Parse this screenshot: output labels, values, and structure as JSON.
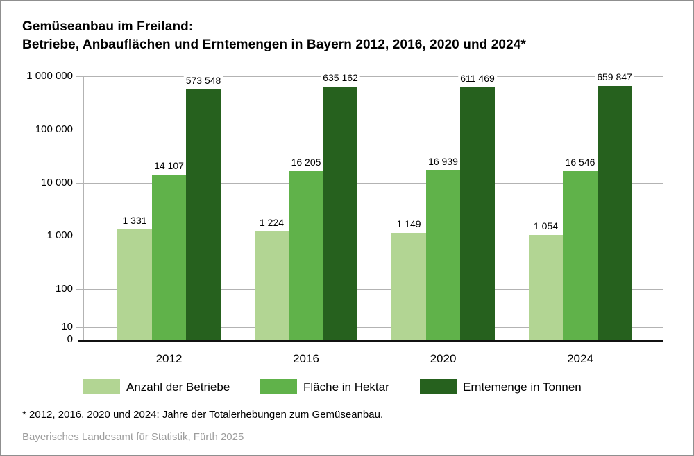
{
  "title": {
    "line1": "Gemüseanbau im Freiland:",
    "line2": "Betriebe, Anbauflächen und Erntemengen in Bayern 2012, 2016, 2020 und 2024*"
  },
  "chart_data": {
    "type": "bar",
    "scale": "logarithmic",
    "categories": [
      "2012",
      "2016",
      "2020",
      "2024"
    ],
    "series": [
      {
        "name": "Anzahl der Betriebe",
        "color": "#b2d593",
        "values": [
          1331,
          1224,
          1149,
          1054
        ],
        "value_labels": [
          "1 331",
          "1 224",
          "1 149",
          "1 054"
        ]
      },
      {
        "name": "Fläche in Hektar",
        "color": "#60b24a",
        "values": [
          14107,
          16205,
          16939,
          16546
        ],
        "value_labels": [
          "14 107",
          "16 205",
          "16 939",
          "16 546"
        ]
      },
      {
        "name": "Erntemenge in Tonnen",
        "color": "#26611e",
        "values": [
          573548,
          635162,
          611469,
          659847
        ],
        "value_labels": [
          "573 548",
          "635 162",
          "611 469",
          "659 847"
        ]
      }
    ],
    "y_axis": {
      "tick_labels": [
        "1 000 000",
        "100 000",
        "10 000",
        "1 000",
        "100",
        "10",
        "0"
      ],
      "ylim": [
        0,
        1000000
      ],
      "grid": true
    },
    "legend_position": "bottom"
  },
  "legend": {
    "items": [
      {
        "label": "Anzahl der Betriebe",
        "color": "#b2d593"
      },
      {
        "label": "Fläche in Hektar",
        "color": "#60b24a"
      },
      {
        "label": "Erntemenge in Tonnen",
        "color": "#26611e"
      }
    ]
  },
  "footnote": "* 2012, 2016, 2020 und 2024: Jahre der Totalerhebungen zum Gemüseanbau.",
  "source": "Bayerisches Landesamt für Statistik, Fürth 2025"
}
